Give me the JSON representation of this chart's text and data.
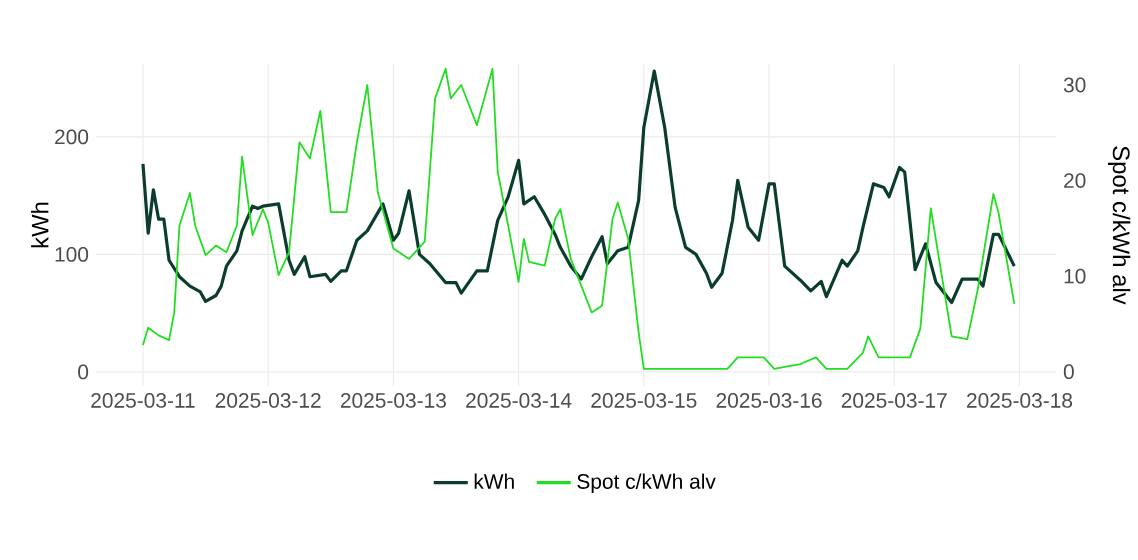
{
  "chart_data": {
    "type": "line",
    "ylabel": "kWh",
    "y2label": "Spot c/kWh alv",
    "xlim": [
      "2025-03-10T15:00",
      "2025-03-18T07:00"
    ],
    "xticks": [
      "2025-03-11",
      "2025-03-12",
      "2025-03-13",
      "2025-03-14",
      "2025-03-15",
      "2025-03-16",
      "2025-03-17",
      "2025-03-18"
    ],
    "ylim": [
      -12,
      262
    ],
    "yticks": [
      0,
      100,
      200
    ],
    "y2lim": [
      -1.5,
      32.2
    ],
    "y2ticks": [
      0,
      10,
      20,
      30
    ],
    "grid": true,
    "legend": "bottom",
    "marker": "none",
    "line_style": "solid",
    "series": [
      {
        "name": "kWh",
        "color": "#0b3d2e",
        "axis": "y",
        "x": [
          "2025-03-11T00:00",
          "2025-03-11T01:00",
          "2025-03-11T02:00",
          "2025-03-11T03:00",
          "2025-03-11T04:00",
          "2025-03-11T05:00",
          "2025-03-11T07:00",
          "2025-03-11T09:00",
          "2025-03-11T11:00",
          "2025-03-11T12:00",
          "2025-03-11T14:00",
          "2025-03-11T15:00",
          "2025-03-11T16:00",
          "2025-03-11T18:00",
          "2025-03-11T19:00",
          "2025-03-11T21:00",
          "2025-03-11T22:00",
          "2025-03-11T23:00",
          "2025-03-12T02:00",
          "2025-03-12T04:00",
          "2025-03-12T05:00",
          "2025-03-12T07:00",
          "2025-03-12T08:00",
          "2025-03-12T11:00",
          "2025-03-12T12:00",
          "2025-03-12T14:00",
          "2025-03-12T15:00",
          "2025-03-12T17:00",
          "2025-03-12T19:00",
          "2025-03-12T22:00",
          "2025-03-13T00:00",
          "2025-03-13T01:00",
          "2025-03-13T03:00",
          "2025-03-13T05:00",
          "2025-03-13T07:00",
          "2025-03-13T10:00",
          "2025-03-13T12:00",
          "2025-03-13T13:00",
          "2025-03-13T16:00",
          "2025-03-13T18:00",
          "2025-03-13T20:00",
          "2025-03-13T22:00",
          "2025-03-14T00:00",
          "2025-03-14T01:00",
          "2025-03-14T03:00",
          "2025-03-14T05:00",
          "2025-03-14T07:00",
          "2025-03-14T08:00",
          "2025-03-14T10:00",
          "2025-03-14T12:00",
          "2025-03-14T14:00",
          "2025-03-14T16:00",
          "2025-03-14T17:00",
          "2025-03-14T19:00",
          "2025-03-14T21:00",
          "2025-03-14T23:00",
          "2025-03-15T00:00",
          "2025-03-15T02:00",
          "2025-03-15T04:00",
          "2025-03-15T06:00",
          "2025-03-15T08:00",
          "2025-03-15T10:00",
          "2025-03-15T12:00",
          "2025-03-15T13:00",
          "2025-03-15T15:00",
          "2025-03-15T17:00",
          "2025-03-15T18:00",
          "2025-03-15T20:00",
          "2025-03-15T22:00",
          "2025-03-16T00:00",
          "2025-03-16T01:00",
          "2025-03-16T03:00",
          "2025-03-16T06:00",
          "2025-03-16T08:00",
          "2025-03-16T10:00",
          "2025-03-16T11:00",
          "2025-03-16T14:00",
          "2025-03-16T15:00",
          "2025-03-16T17:00",
          "2025-03-16T18:00",
          "2025-03-16T20:00",
          "2025-03-16T22:00",
          "2025-03-16T23:00",
          "2025-03-17T01:00",
          "2025-03-17T02:00",
          "2025-03-17T04:00",
          "2025-03-17T06:00",
          "2025-03-17T08:00",
          "2025-03-17T11:00",
          "2025-03-17T13:00",
          "2025-03-17T16:00",
          "2025-03-17T17:00",
          "2025-03-17T19:00",
          "2025-03-17T20:00",
          "2025-03-17T23:00"
        ],
        "values": [
          177,
          118,
          155,
          130,
          130,
          95,
          81,
          73,
          68,
          60,
          65,
          73,
          90,
          103,
          120,
          141,
          139,
          141,
          143,
          95,
          83,
          98,
          81,
          83,
          77,
          86,
          86,
          112,
          120,
          143,
          112,
          118,
          154,
          100,
          92,
          76,
          76,
          67,
          86,
          86,
          129,
          149,
          180,
          143,
          149,
          134,
          117,
          106,
          90,
          79,
          98,
          115,
          92,
          103,
          106,
          146,
          208,
          256,
          208,
          140,
          106,
          100,
          84,
          72,
          84,
          129,
          163,
          123,
          112,
          160,
          160,
          90,
          78,
          69,
          77,
          64,
          95,
          90,
          103,
          123,
          160,
          157,
          149,
          174,
          170,
          87,
          109,
          76,
          59,
          79,
          79,
          73,
          117,
          117,
          90
        ]
      },
      {
        "name": "Spot c/kWh alv",
        "color": "#22dd22",
        "axis": "y2",
        "x": [
          "2025-03-11T00:00",
          "2025-03-11T01:00",
          "2025-03-11T03:00",
          "2025-03-11T05:00",
          "2025-03-11T06:00",
          "2025-03-11T07:00",
          "2025-03-11T09:00",
          "2025-03-11T10:00",
          "2025-03-11T12:00",
          "2025-03-11T14:00",
          "2025-03-11T16:00",
          "2025-03-11T18:00",
          "2025-03-11T19:00",
          "2025-03-11T21:00",
          "2025-03-11T23:00",
          "2025-03-12T00:00",
          "2025-03-12T02:00",
          "2025-03-12T04:00",
          "2025-03-12T06:00",
          "2025-03-12T08:00",
          "2025-03-12T10:00",
          "2025-03-12T12:00",
          "2025-03-12T15:00",
          "2025-03-12T17:00",
          "2025-03-12T19:00",
          "2025-03-12T21:00",
          "2025-03-13T00:00",
          "2025-03-13T03:00",
          "2025-03-13T06:00",
          "2025-03-13T08:00",
          "2025-03-13T10:00",
          "2025-03-13T11:00",
          "2025-03-13T13:00",
          "2025-03-13T16:00",
          "2025-03-13T19:00",
          "2025-03-13T20:00",
          "2025-03-13T22:00",
          "2025-03-14T00:00",
          "2025-03-14T01:00",
          "2025-03-14T02:00",
          "2025-03-14T05:00",
          "2025-03-14T07:00",
          "2025-03-14T08:00",
          "2025-03-14T10:00",
          "2025-03-14T12:00",
          "2025-03-14T14:00",
          "2025-03-14T16:00",
          "2025-03-14T18:00",
          "2025-03-14T19:00",
          "2025-03-14T21:00",
          "2025-03-14T23:00",
          "2025-03-15T00:00",
          "2025-03-15T16:00",
          "2025-03-15T18:00",
          "2025-03-15T23:00",
          "2025-03-16T01:00",
          "2025-03-16T03:00",
          "2025-03-16T06:00",
          "2025-03-16T09:00",
          "2025-03-16T11:00",
          "2025-03-16T15:00",
          "2025-03-16T18:00",
          "2025-03-16T19:00",
          "2025-03-16T21:00",
          "2025-03-17T03:00",
          "2025-03-17T05:00",
          "2025-03-17T07:00",
          "2025-03-17T11:00",
          "2025-03-17T14:00",
          "2025-03-17T16:00",
          "2025-03-17T19:00",
          "2025-03-17T20:00",
          "2025-03-17T23:00"
        ],
        "values": [
          2.8,
          4.6,
          3.8,
          3.3,
          6.2,
          15.3,
          18.7,
          15.3,
          12.2,
          13.2,
          12.5,
          15.3,
          22.5,
          14.3,
          17,
          15.6,
          10.1,
          12.5,
          24,
          22.3,
          27.3,
          16.7,
          16.7,
          24,
          30,
          18.8,
          12.9,
          11.8,
          13.6,
          28.6,
          31.7,
          28.6,
          30,
          25.8,
          31.7,
          20.9,
          15.3,
          9.4,
          13.9,
          11.5,
          11.1,
          16,
          17,
          11.8,
          9,
          6.2,
          6.9,
          16,
          17.7,
          13.9,
          4.1,
          0.3,
          0.3,
          1.5,
          1.5,
          0.3,
          0.5,
          0.8,
          1.5,
          0.3,
          0.3,
          2.0,
          3.7,
          1.5,
          1.5,
          4.5,
          17.1,
          3.7,
          3.4,
          8.6,
          18.6,
          16.6,
          7.1
        ]
      }
    ]
  }
}
